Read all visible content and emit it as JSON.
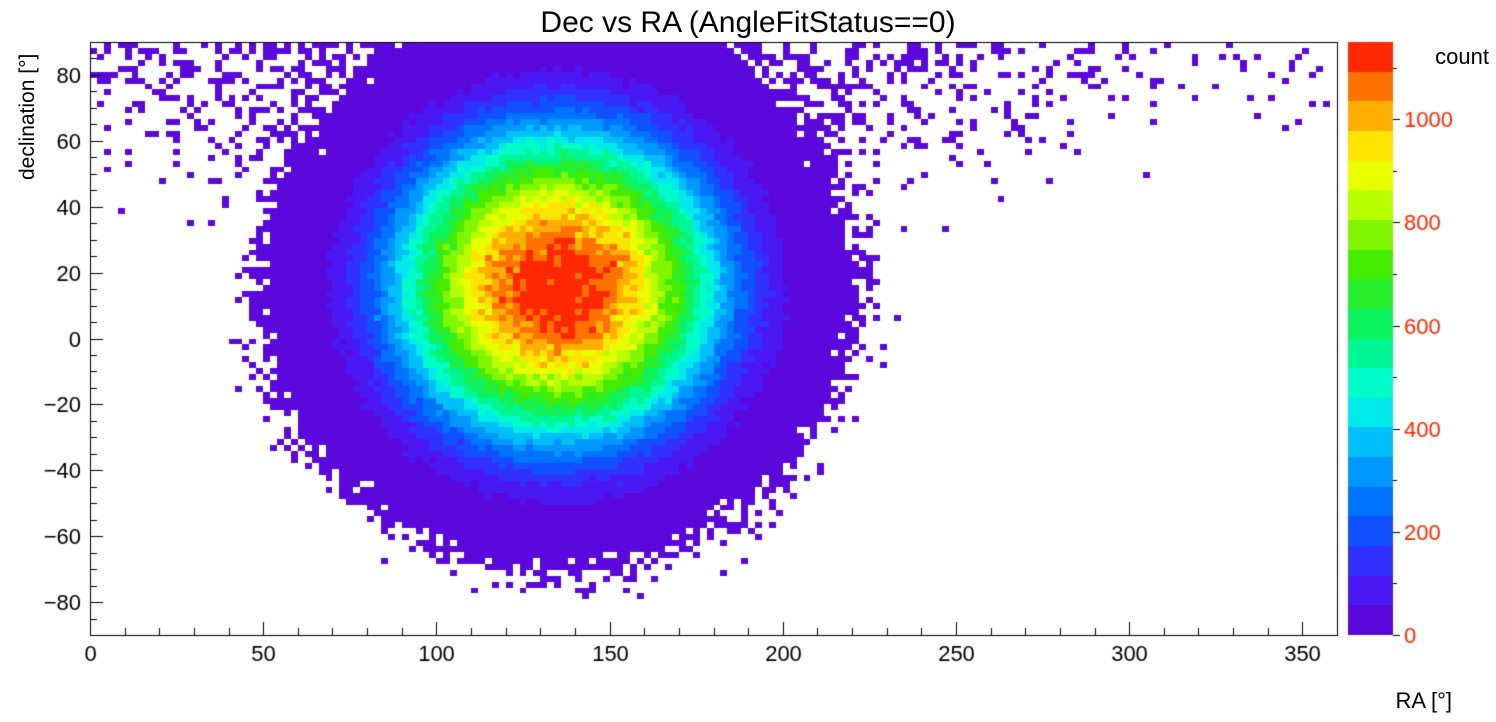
{
  "chart_data": {
    "type": "heatmap",
    "title": "Dec vs RA (AngleFitStatus==0)",
    "xlabel": "RA [°]",
    "ylabel": "declination [°]",
    "colorbar_label": "count",
    "x_range": [
      0,
      360
    ],
    "y_range": [
      -90,
      90
    ],
    "z_range": [
      0,
      1150
    ],
    "x_ticks": [
      0,
      50,
      100,
      150,
      200,
      250,
      300,
      350
    ],
    "x_minor_step": 10,
    "y_ticks": [
      -80,
      -60,
      -40,
      -20,
      0,
      20,
      40,
      60,
      80
    ],
    "y_minor_step": 5,
    "z_ticks": [
      0,
      200,
      400,
      600,
      800,
      1000
    ],
    "z_minor_step": 100,
    "n_contours": 20,
    "grid": false,
    "legend_position": "right-colorbar",
    "bins": {
      "nx": 180,
      "ny": 100
    },
    "distribution": {
      "description": "2D Gaussian event blob centered near RA 135, Dec +16 with softened outer edge, Poisson speckle fringe, a funnel of sparse hits widening toward high declination, and a sparse polar cap band across all RA near Dec +90",
      "center_ra_deg": 135,
      "center_dec_deg": 16,
      "peak_count": 1150,
      "sigma_deg": 40,
      "edge_soften_deg": 60,
      "funnel": {
        "amplitude": 0.55,
        "base_width_deg": 20,
        "width_slope": 1.1,
        "dec_scale_deg": 45
      },
      "polar_cap": {
        "amplitude": 0.12,
        "scale_deg": 8
      },
      "seed": 42
    },
    "palette_stops": [
      [
        0.0,
        98,
        0,
        208
      ],
      [
        0.1,
        64,
        32,
        255
      ],
      [
        0.2,
        0,
        96,
        255
      ],
      [
        0.3,
        0,
        170,
        255
      ],
      [
        0.4,
        0,
        255,
        228
      ],
      [
        0.5,
        0,
        244,
        120
      ],
      [
        0.62,
        64,
        235,
        0
      ],
      [
        0.72,
        180,
        255,
        0
      ],
      [
        0.8,
        255,
        255,
        0
      ],
      [
        0.88,
        255,
        170,
        0
      ],
      [
        0.94,
        255,
        96,
        0
      ],
      [
        1.0,
        255,
        0,
        0
      ]
    ],
    "background": "#ffffff",
    "axis_color": "#000000"
  }
}
